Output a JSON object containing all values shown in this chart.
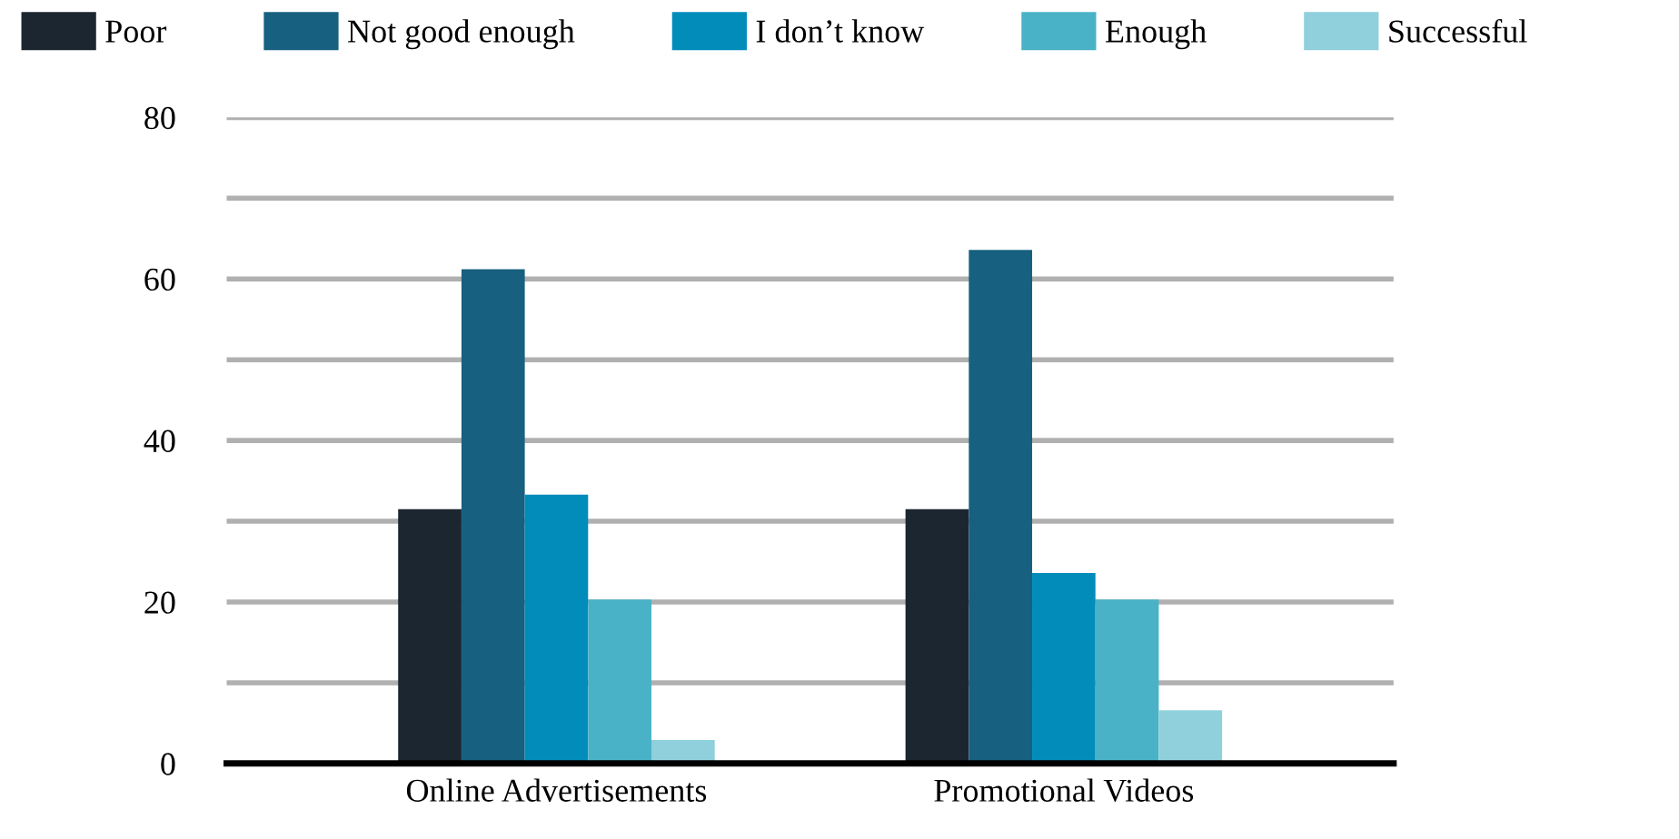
{
  "chart_data": {
    "type": "bar",
    "categories": [
      "Online Advertisements",
      "Promotional Videos"
    ],
    "series": [
      {
        "name": "Poor",
        "color": "#1c2630",
        "values": [
          31.5,
          31.5
        ]
      },
      {
        "name": "Not good enough",
        "color": "#17607f",
        "values": [
          61.2,
          63.6
        ]
      },
      {
        "name": "I don’t know",
        "color": "#028cba",
        "values": [
          33.3,
          23.6
        ]
      },
      {
        "name": "Enough",
        "color": "#4ab2c6",
        "values": [
          20.3,
          20.3
        ]
      },
      {
        "name": "Successful",
        "color": "#8fd0dc",
        "values": [
          2.9,
          6.6
        ]
      }
    ],
    "ylim": [
      0,
      80
    ],
    "yticks": [
      0,
      {
        "value": 10,
        "label": null
      },
      20,
      {
        "value": 30,
        "label": null
      },
      40,
      {
        "value": 50,
        "label": null
      },
      60,
      {
        "value": 70,
        "label": null
      },
      80
    ],
    "grid": "y",
    "legend": "top"
  }
}
